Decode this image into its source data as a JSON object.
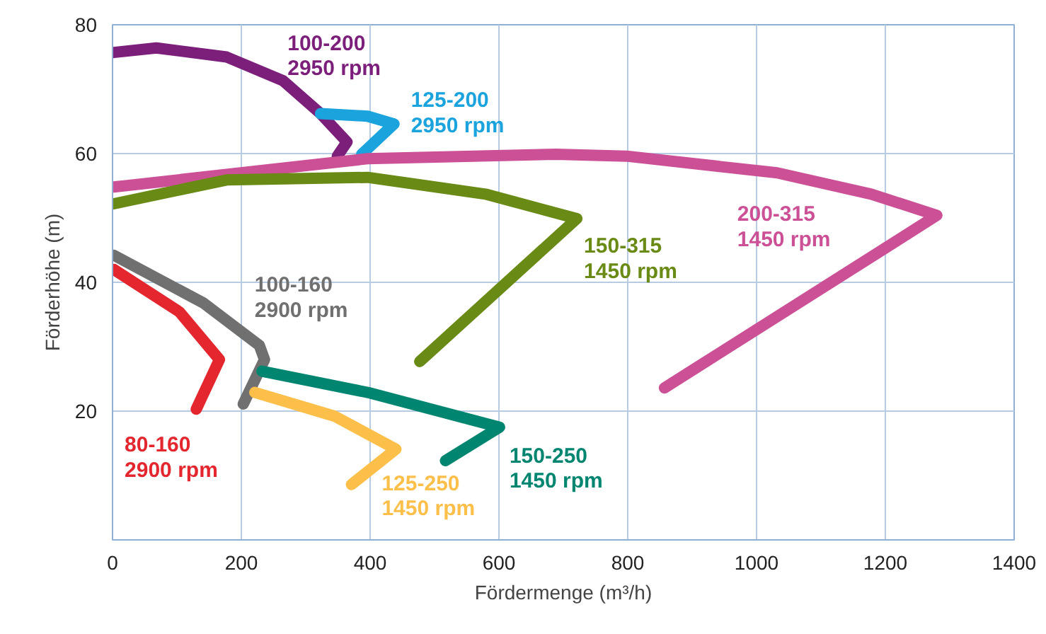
{
  "chart_data": {
    "type": "line",
    "xlabel": "Fördermenge (m³/h)",
    "ylabel": "Förderhöhe (m)",
    "xlim": [
      0,
      1400
    ],
    "ylim": [
      0,
      80
    ],
    "xticks": [
      0,
      200,
      400,
      600,
      800,
      1000,
      1200,
      1400
    ],
    "yticks": [
      20,
      40,
      60,
      80
    ],
    "grid": true,
    "marker": "none",
    "line_style": "solid",
    "series": [
      {
        "name": "100-200\n2950 rpm",
        "color": "#7b1f7a",
        "x": [
          2,
          68,
          177,
          265,
          323,
          364,
          349
        ],
        "values": [
          75.7,
          76.4,
          75.0,
          71.3,
          66.2,
          61.8,
          59.6
        ]
      },
      {
        "name": "125-200\n2950 rpm",
        "color": "#1aa3dc",
        "x": [
          323,
          396,
          437,
          387
        ],
        "values": [
          66.2,
          65.8,
          64.6,
          59.9
        ]
      },
      {
        "name": "200-315\n1450 rpm",
        "color": "#cc5096",
        "x": [
          2,
          396,
          688,
          798,
          1032,
          1178,
          1280,
          857
        ],
        "values": [
          54.8,
          59.2,
          59.9,
          59.6,
          57.0,
          53.7,
          50.4,
          23.6
        ]
      },
      {
        "name": "150-315\n1450 rpm",
        "color": "#6a8a16",
        "x": [
          2,
          177,
          396,
          579,
          721,
          477
        ],
        "values": [
          52.2,
          55.9,
          56.3,
          53.7,
          49.9,
          27.7
        ]
      },
      {
        "name": "100-160\n2900 rpm",
        "color": "#707070",
        "x": [
          2,
          141,
          228,
          236,
          203
        ],
        "values": [
          44.2,
          36.8,
          30.2,
          28.0,
          21.1
        ]
      },
      {
        "name": "80-160\n2900 rpm",
        "color": "#e4262f",
        "x": [
          2,
          104,
          166,
          130
        ],
        "values": [
          42.0,
          35.4,
          28.0,
          20.3
        ]
      },
      {
        "name": "150-250\n1450 rpm",
        "color": "#008670",
        "x": [
          232,
          396,
          601,
          517
        ],
        "values": [
          26.2,
          22.9,
          17.5,
          12.3
        ]
      },
      {
        "name": "125-250\n1450 rpm",
        "color": "#fcbf49",
        "x": [
          221,
          345,
          440,
          371
        ],
        "values": [
          22.9,
          19.2,
          14.1,
          8.6
        ]
      }
    ]
  }
}
